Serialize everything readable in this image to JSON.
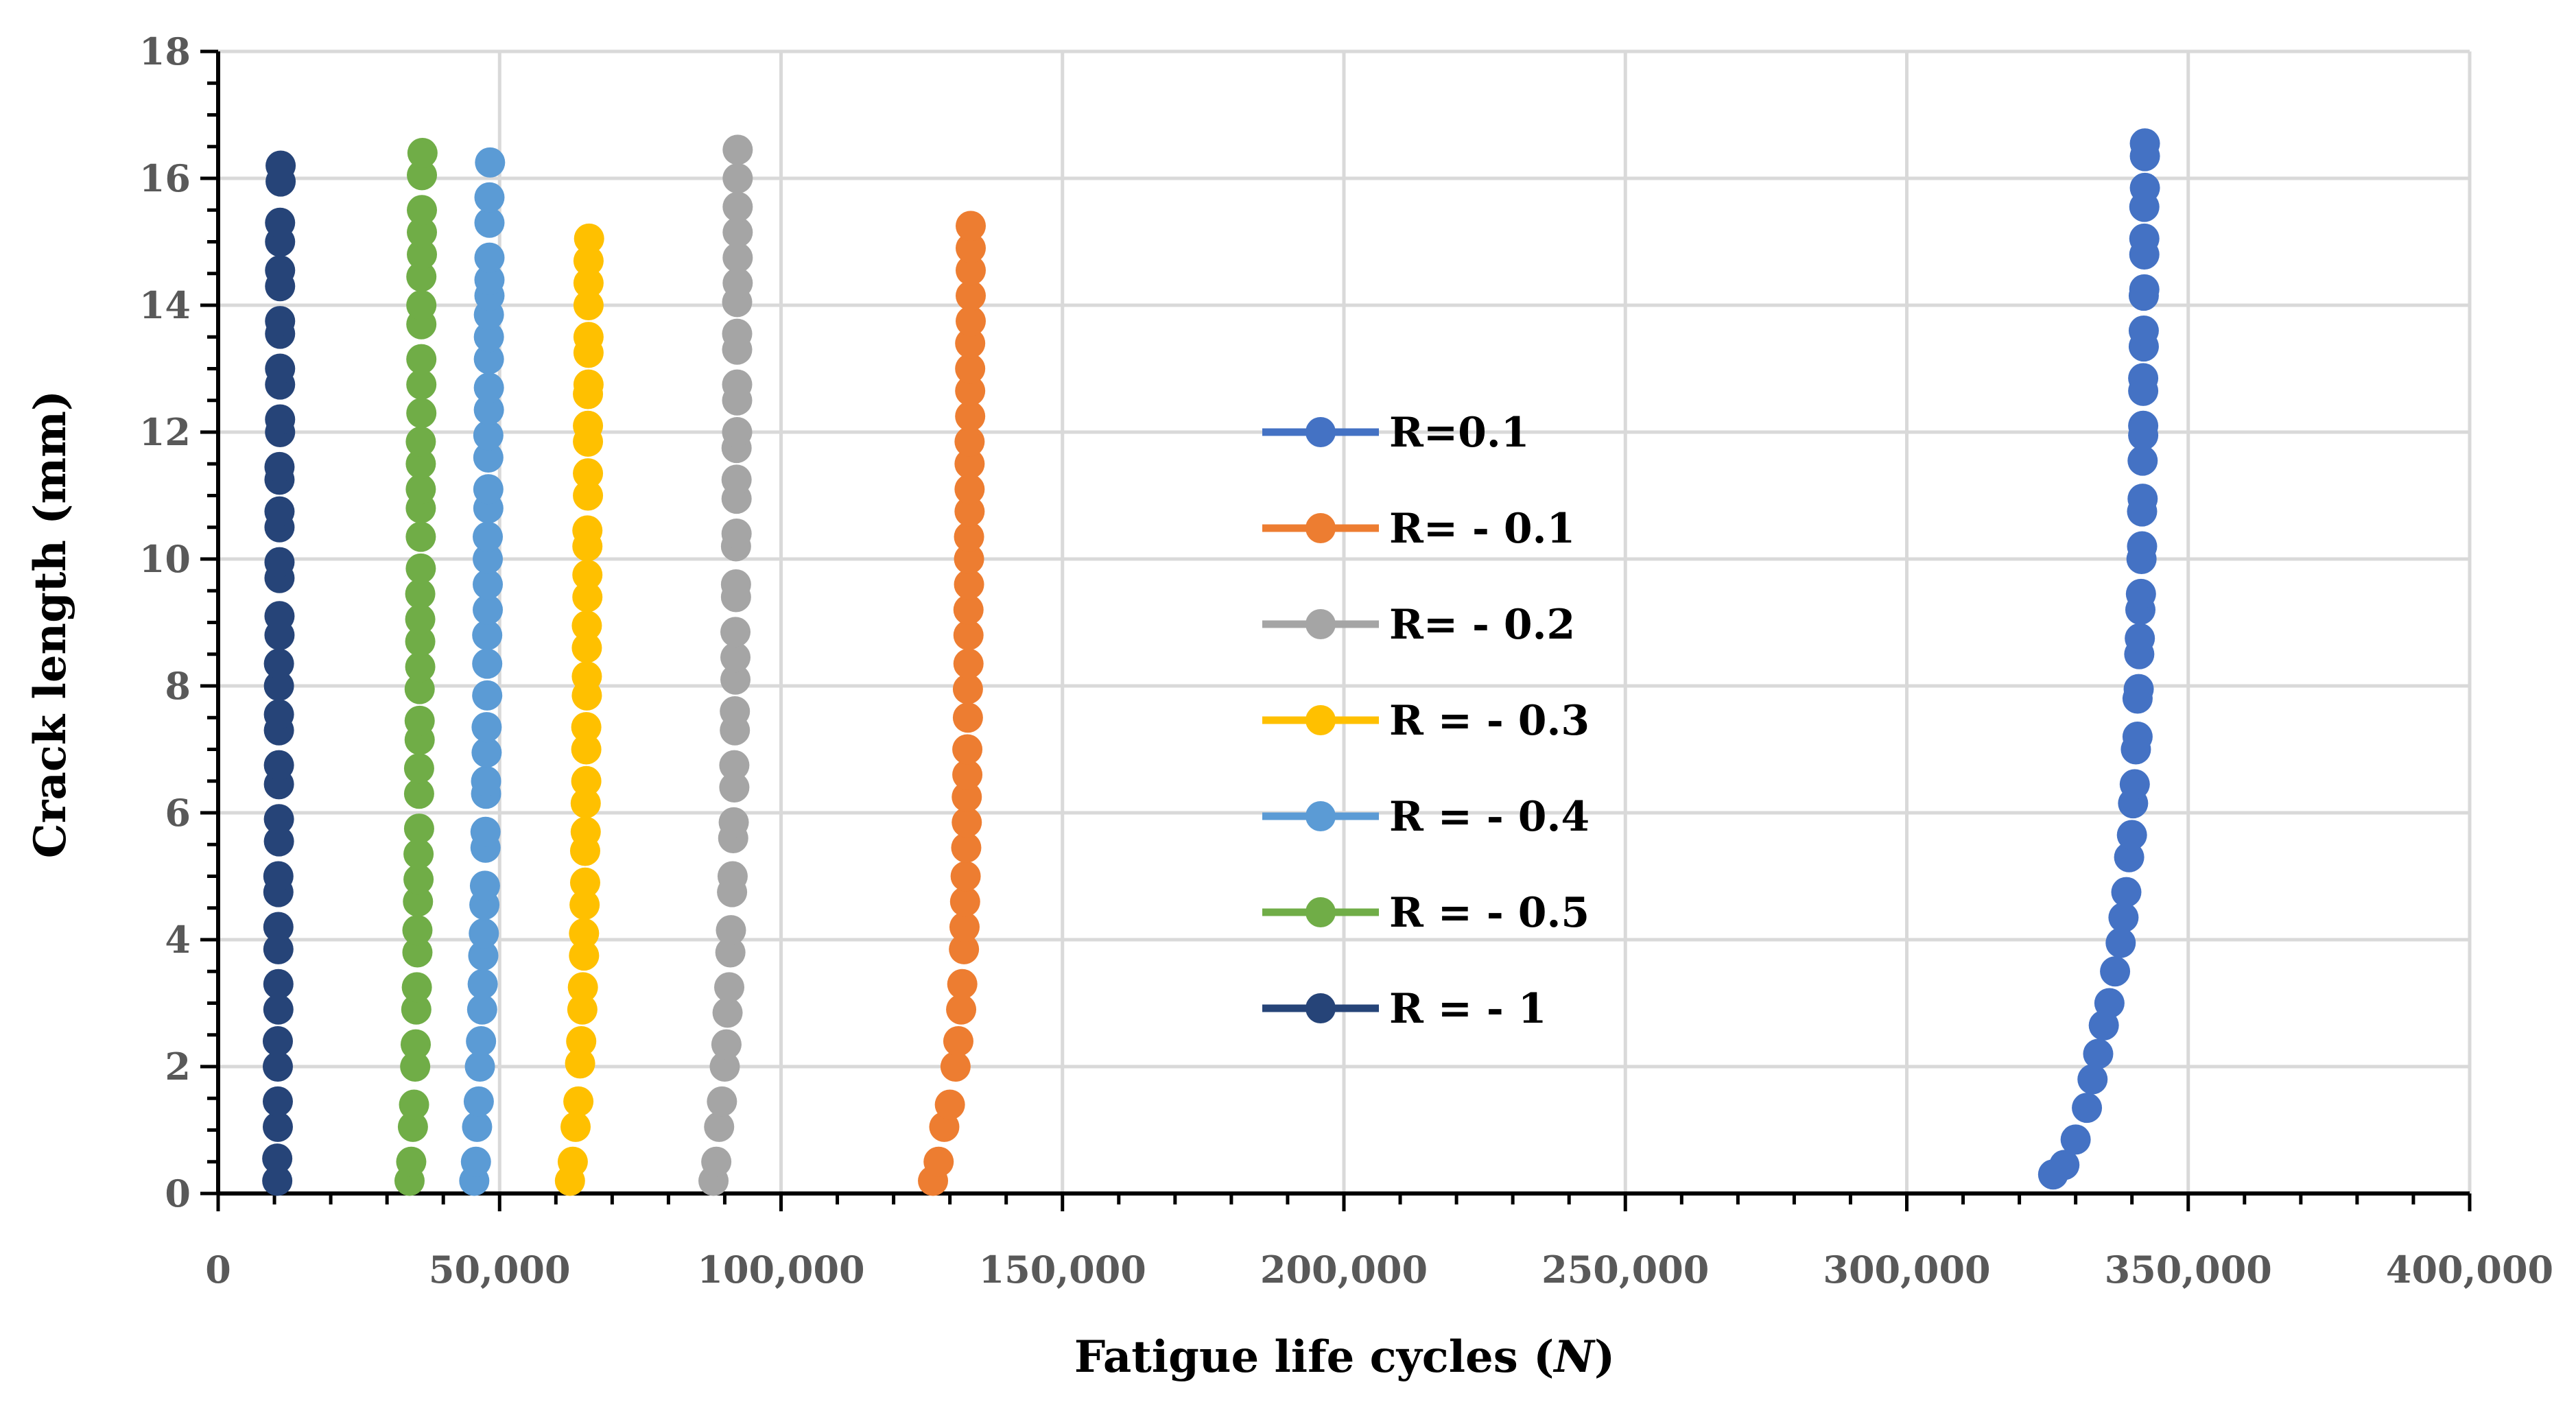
{
  "chart_data": {
    "type": "scatter",
    "title": "",
    "xlabel": "Fatigue life cycles (",
    "xlabel_var": "N",
    "xlabel_end": ")",
    "ylabel": "Crack length (mm)",
    "xlim": [
      0,
      400000
    ],
    "ylim": [
      0,
      18
    ],
    "grid": true,
    "legend_position": "center",
    "x_ticks": [
      {
        "value": 0,
        "label": "0"
      },
      {
        "value": 50000,
        "label": "50,000"
      },
      {
        "value": 100000,
        "label": "100,000"
      },
      {
        "value": 150000,
        "label": "150,000"
      },
      {
        "value": 200000,
        "label": "200,000"
      },
      {
        "value": 250000,
        "label": "250,000"
      },
      {
        "value": 300000,
        "label": "300,000"
      },
      {
        "value": 350000,
        "label": "350,000"
      },
      {
        "value": 400000,
        "label": "400,000"
      }
    ],
    "y_ticks": [
      {
        "value": 0,
        "label": "0"
      },
      {
        "value": 2,
        "label": "2"
      },
      {
        "value": 4,
        "label": "4"
      },
      {
        "value": 6,
        "label": "6"
      },
      {
        "value": 8,
        "label": "8"
      },
      {
        "value": 10,
        "label": "10"
      },
      {
        "value": 12,
        "label": "12"
      },
      {
        "value": 14,
        "label": "14"
      },
      {
        "value": 16,
        "label": "16"
      },
      {
        "value": 18,
        "label": "18"
      }
    ],
    "series": [
      {
        "name": "R=0.1",
        "color": "#4472c4",
        "points": [
          [
            326000,
            0.3
          ],
          [
            328000,
            0.45
          ],
          [
            330000,
            0.85
          ],
          [
            332000,
            1.35
          ],
          [
            333000,
            1.8
          ],
          [
            334000,
            2.2
          ],
          [
            335000,
            2.65
          ],
          [
            336000,
            3.0
          ],
          [
            337000,
            3.5
          ],
          [
            338000,
            3.95
          ],
          [
            338500,
            4.35
          ],
          [
            339000,
            4.75
          ],
          [
            339500,
            5.3
          ],
          [
            340000,
            5.65
          ],
          [
            340200,
            6.15
          ],
          [
            340500,
            6.45
          ],
          [
            340700,
            7.0
          ],
          [
            341000,
            7.2
          ],
          [
            341000,
            7.8
          ],
          [
            341200,
            7.95
          ],
          [
            341300,
            8.5
          ],
          [
            341400,
            8.75
          ],
          [
            341500,
            9.2
          ],
          [
            341600,
            9.45
          ],
          [
            341700,
            10.0
          ],
          [
            341800,
            10.2
          ],
          [
            341800,
            10.75
          ],
          [
            341900,
            10.95
          ],
          [
            341900,
            11.55
          ],
          [
            342000,
            11.95
          ],
          [
            342000,
            12.1
          ],
          [
            342000,
            12.65
          ],
          [
            342000,
            12.85
          ],
          [
            342100,
            13.35
          ],
          [
            342100,
            13.6
          ],
          [
            342100,
            14.15
          ],
          [
            342200,
            14.25
          ],
          [
            342200,
            14.8
          ],
          [
            342200,
            15.05
          ],
          [
            342200,
            15.55
          ],
          [
            342300,
            15.85
          ],
          [
            342300,
            16.35
          ],
          [
            342300,
            16.55
          ]
        ]
      },
      {
        "name": "R= - 0.1",
        "color": "#ed7d31",
        "points": [
          [
            127000,
            0.2
          ],
          [
            128000,
            0.5
          ],
          [
            129000,
            1.05
          ],
          [
            130000,
            1.4
          ],
          [
            131000,
            2.0
          ],
          [
            131500,
            2.4
          ],
          [
            132000,
            2.9
          ],
          [
            132200,
            3.3
          ],
          [
            132500,
            3.85
          ],
          [
            132600,
            4.2
          ],
          [
            132700,
            4.6
          ],
          [
            132800,
            5.0
          ],
          [
            132900,
            5.45
          ],
          [
            133000,
            5.85
          ],
          [
            133000,
            6.25
          ],
          [
            133100,
            6.6
          ],
          [
            133100,
            7.0
          ],
          [
            133200,
            7.5
          ],
          [
            133200,
            7.95
          ],
          [
            133300,
            8.35
          ],
          [
            133300,
            8.8
          ],
          [
            133300,
            9.2
          ],
          [
            133400,
            9.6
          ],
          [
            133400,
            10.0
          ],
          [
            133400,
            10.35
          ],
          [
            133500,
            10.75
          ],
          [
            133500,
            11.1
          ],
          [
            133500,
            11.5
          ],
          [
            133500,
            11.85
          ],
          [
            133600,
            12.25
          ],
          [
            133600,
            12.65
          ],
          [
            133600,
            13.0
          ],
          [
            133600,
            13.4
          ],
          [
            133700,
            13.75
          ],
          [
            133700,
            14.15
          ],
          [
            133700,
            14.55
          ],
          [
            133700,
            14.9
          ],
          [
            133700,
            15.25
          ]
        ]
      },
      {
        "name": "R= - 0.2",
        "color": "#a5a5a5",
        "points": [
          [
            88000,
            0.2
          ],
          [
            88500,
            0.5
          ],
          [
            89000,
            1.05
          ],
          [
            89500,
            1.45
          ],
          [
            90000,
            2.0
          ],
          [
            90300,
            2.35
          ],
          [
            90500,
            2.85
          ],
          [
            90800,
            3.25
          ],
          [
            91000,
            3.8
          ],
          [
            91100,
            4.15
          ],
          [
            91300,
            4.75
          ],
          [
            91400,
            5.0
          ],
          [
            91500,
            5.6
          ],
          [
            91600,
            5.85
          ],
          [
            91700,
            6.4
          ],
          [
            91700,
            6.75
          ],
          [
            91800,
            7.3
          ],
          [
            91800,
            7.6
          ],
          [
            91900,
            8.1
          ],
          [
            91900,
            8.45
          ],
          [
            91900,
            8.85
          ],
          [
            92000,
            9.4
          ],
          [
            92000,
            9.6
          ],
          [
            92000,
            10.2
          ],
          [
            92100,
            10.4
          ],
          [
            92100,
            10.95
          ],
          [
            92100,
            11.25
          ],
          [
            92100,
            11.75
          ],
          [
            92200,
            12.0
          ],
          [
            92200,
            12.5
          ],
          [
            92200,
            12.75
          ],
          [
            92200,
            13.3
          ],
          [
            92200,
            13.55
          ],
          [
            92200,
            14.05
          ],
          [
            92300,
            14.35
          ],
          [
            92300,
            14.75
          ],
          [
            92300,
            15.15
          ],
          [
            92300,
            15.55
          ],
          [
            92300,
            16.0
          ],
          [
            92300,
            16.45
          ]
        ]
      },
      {
        "name": "R = - 0.3",
        "color": "#ffc000",
        "points": [
          [
            62500,
            0.2
          ],
          [
            63000,
            0.5
          ],
          [
            63500,
            1.05
          ],
          [
            64000,
            1.45
          ],
          [
            64300,
            2.05
          ],
          [
            64500,
            2.4
          ],
          [
            64700,
            2.9
          ],
          [
            64800,
            3.25
          ],
          [
            65000,
            3.75
          ],
          [
            65000,
            4.1
          ],
          [
            65100,
            4.55
          ],
          [
            65200,
            4.9
          ],
          [
            65200,
            5.4
          ],
          [
            65300,
            5.7
          ],
          [
            65300,
            6.15
          ],
          [
            65400,
            6.5
          ],
          [
            65400,
            7.0
          ],
          [
            65400,
            7.35
          ],
          [
            65500,
            7.85
          ],
          [
            65500,
            8.15
          ],
          [
            65500,
            8.6
          ],
          [
            65500,
            8.95
          ],
          [
            65600,
            9.4
          ],
          [
            65600,
            9.75
          ],
          [
            65600,
            10.2
          ],
          [
            65600,
            10.45
          ],
          [
            65700,
            11.0
          ],
          [
            65700,
            11.35
          ],
          [
            65700,
            11.85
          ],
          [
            65700,
            12.1
          ],
          [
            65700,
            12.6
          ],
          [
            65800,
            12.75
          ],
          [
            65800,
            13.25
          ],
          [
            65800,
            13.5
          ],
          [
            65800,
            14.0
          ],
          [
            65800,
            14.35
          ],
          [
            65800,
            14.7
          ],
          [
            65900,
            15.05
          ]
        ]
      },
      {
        "name": "R = - 0.4",
        "color": "#5b9bd5",
        "points": [
          [
            45500,
            0.2
          ],
          [
            45800,
            0.5
          ],
          [
            46000,
            1.05
          ],
          [
            46300,
            1.45
          ],
          [
            46500,
            2.0
          ],
          [
            46700,
            2.4
          ],
          [
            46900,
            2.9
          ],
          [
            47000,
            3.3
          ],
          [
            47100,
            3.75
          ],
          [
            47200,
            4.1
          ],
          [
            47300,
            4.55
          ],
          [
            47400,
            4.85
          ],
          [
            47500,
            5.45
          ],
          [
            47500,
            5.7
          ],
          [
            47600,
            6.3
          ],
          [
            47600,
            6.5
          ],
          [
            47700,
            6.95
          ],
          [
            47700,
            7.35
          ],
          [
            47800,
            7.85
          ],
          [
            47800,
            8.35
          ],
          [
            47800,
            8.8
          ],
          [
            47900,
            9.2
          ],
          [
            47900,
            9.6
          ],
          [
            47900,
            10.0
          ],
          [
            47900,
            10.35
          ],
          [
            48000,
            10.8
          ],
          [
            48000,
            11.1
          ],
          [
            48000,
            11.6
          ],
          [
            48000,
            11.95
          ],
          [
            48100,
            12.35
          ],
          [
            48100,
            12.7
          ],
          [
            48100,
            13.15
          ],
          [
            48100,
            13.5
          ],
          [
            48100,
            13.85
          ],
          [
            48200,
            14.15
          ],
          [
            48200,
            14.4
          ],
          [
            48200,
            14.75
          ],
          [
            48200,
            15.3
          ],
          [
            48200,
            15.7
          ],
          [
            48300,
            16.25
          ]
        ]
      },
      {
        "name": "R = - 0.5",
        "color": "#70ad47",
        "points": [
          [
            34000,
            0.2
          ],
          [
            34300,
            0.5
          ],
          [
            34600,
            1.05
          ],
          [
            34800,
            1.4
          ],
          [
            35000,
            2.0
          ],
          [
            35100,
            2.35
          ],
          [
            35200,
            2.9
          ],
          [
            35300,
            3.25
          ],
          [
            35400,
            3.8
          ],
          [
            35400,
            4.15
          ],
          [
            35500,
            4.6
          ],
          [
            35600,
            4.95
          ],
          [
            35600,
            5.35
          ],
          [
            35700,
            5.75
          ],
          [
            35700,
            6.3
          ],
          [
            35700,
            6.7
          ],
          [
            35800,
            7.15
          ],
          [
            35800,
            7.45
          ],
          [
            35800,
            7.95
          ],
          [
            35900,
            8.3
          ],
          [
            35900,
            8.7
          ],
          [
            35900,
            9.05
          ],
          [
            35900,
            9.45
          ],
          [
            36000,
            9.85
          ],
          [
            36000,
            10.35
          ],
          [
            36000,
            10.8
          ],
          [
            36000,
            11.1
          ],
          [
            36000,
            11.5
          ],
          [
            36000,
            11.85
          ],
          [
            36100,
            12.3
          ],
          [
            36100,
            12.75
          ],
          [
            36100,
            13.15
          ],
          [
            36100,
            13.7
          ],
          [
            36100,
            14.0
          ],
          [
            36100,
            14.45
          ],
          [
            36200,
            14.8
          ],
          [
            36200,
            15.15
          ],
          [
            36200,
            15.5
          ],
          [
            36200,
            16.05
          ],
          [
            36300,
            16.4
          ]
        ]
      },
      {
        "name": "R = - 1",
        "color": "#264478",
        "points": [
          [
            10500,
            0.2
          ],
          [
            10500,
            0.55
          ],
          [
            10600,
            1.05
          ],
          [
            10600,
            1.45
          ],
          [
            10600,
            2.0
          ],
          [
            10600,
            2.4
          ],
          [
            10700,
            2.9
          ],
          [
            10700,
            3.3
          ],
          [
            10700,
            3.85
          ],
          [
            10700,
            4.2
          ],
          [
            10700,
            4.75
          ],
          [
            10700,
            5.0
          ],
          [
            10800,
            5.55
          ],
          [
            10800,
            5.9
          ],
          [
            10800,
            6.45
          ],
          [
            10800,
            6.75
          ],
          [
            10800,
            7.3
          ],
          [
            10800,
            7.55
          ],
          [
            10800,
            8.0
          ],
          [
            10800,
            8.35
          ],
          [
            10900,
            8.8
          ],
          [
            10900,
            9.1
          ],
          [
            10900,
            9.7
          ],
          [
            10900,
            9.95
          ],
          [
            10900,
            10.5
          ],
          [
            10900,
            10.75
          ],
          [
            10900,
            11.25
          ],
          [
            10900,
            11.45
          ],
          [
            11000,
            12.0
          ],
          [
            11000,
            12.2
          ],
          [
            11000,
            12.75
          ],
          [
            11000,
            13.0
          ],
          [
            11000,
            13.55
          ],
          [
            11000,
            13.75
          ],
          [
            11000,
            14.3
          ],
          [
            11000,
            14.55
          ],
          [
            11000,
            15.0
          ],
          [
            11000,
            15.3
          ],
          [
            11100,
            15.95
          ],
          [
            11100,
            16.2
          ]
        ]
      }
    ]
  }
}
